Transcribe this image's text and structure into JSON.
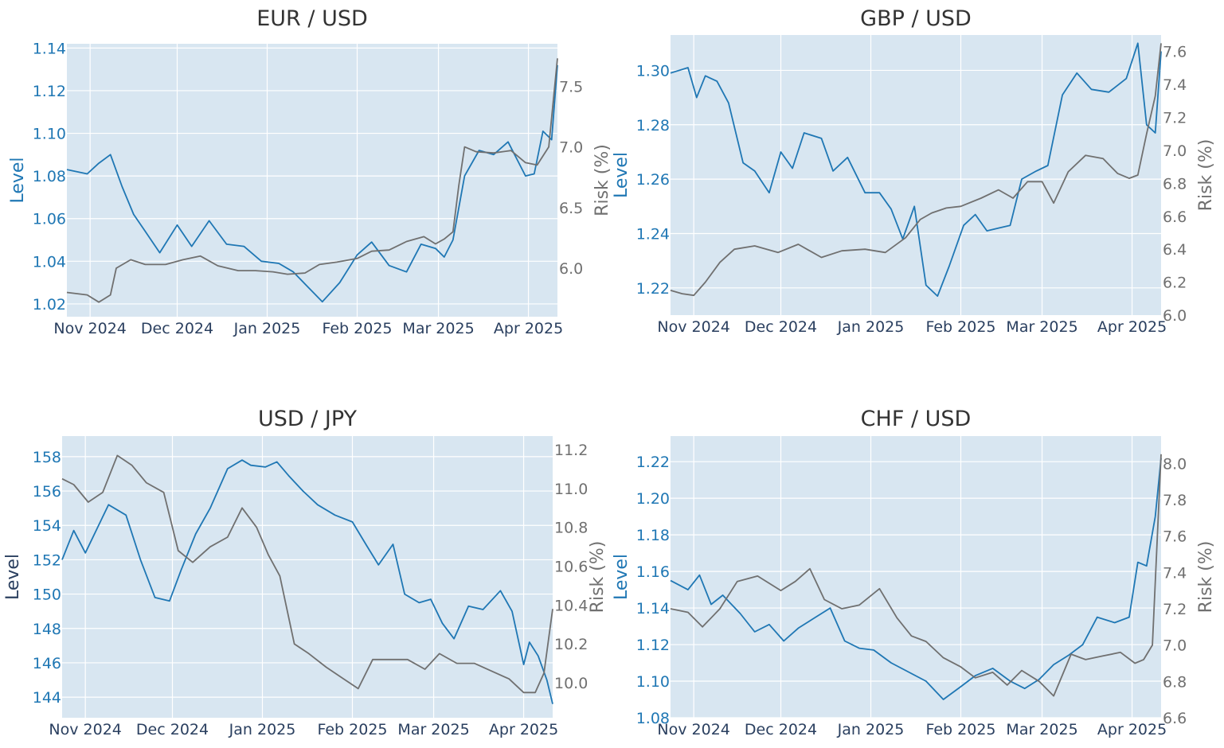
{
  "chart_data": [
    {
      "type": "line",
      "title": "EUR / USD",
      "ylabel": "Level",
      "y2label": "Risk (%)",
      "x_ticks": [
        "Nov 2024",
        "Dec 2024",
        "Jan 2025",
        "Feb 2025",
        "Mar 2025",
        "Apr 2025"
      ],
      "x_range": [
        "2024-10-24",
        "2025-04-11"
      ],
      "ylim": [
        1.014,
        1.142
      ],
      "y_ticks": [
        1.02,
        1.04,
        1.06,
        1.08,
        1.1,
        1.12,
        1.14
      ],
      "y2lim": [
        5.6,
        7.85
      ],
      "y2_ticks": [
        6.0,
        6.5,
        7.0,
        7.5
      ],
      "grid": true,
      "series": [
        {
          "role": "level",
          "axis": "left",
          "color": "#1f77b4",
          "x": [
            "2024-10-24",
            "2024-10-31",
            "2024-11-04",
            "2024-11-08",
            "2024-11-12",
            "2024-11-16",
            "2024-11-20",
            "2024-11-25",
            "2024-12-01",
            "2024-12-06",
            "2024-12-12",
            "2024-12-18",
            "2024-12-24",
            "2024-12-30",
            "2025-01-05",
            "2025-01-10",
            "2025-01-15",
            "2025-01-20",
            "2025-01-26",
            "2025-02-01",
            "2025-02-06",
            "2025-02-12",
            "2025-02-18",
            "2025-02-23",
            "2025-02-28",
            "2025-03-03",
            "2025-03-06",
            "2025-03-10",
            "2025-03-15",
            "2025-03-20",
            "2025-03-25",
            "2025-03-31",
            "2025-04-03",
            "2025-04-06",
            "2025-04-09",
            "2025-04-11"
          ],
          "y": [
            1.083,
            1.081,
            1.086,
            1.09,
            1.075,
            1.062,
            1.054,
            1.044,
            1.057,
            1.047,
            1.059,
            1.048,
            1.047,
            1.04,
            1.039,
            1.035,
            1.028,
            1.021,
            1.03,
            1.043,
            1.049,
            1.038,
            1.035,
            1.048,
            1.046,
            1.042,
            1.05,
            1.08,
            1.092,
            1.09,
            1.096,
            1.08,
            1.081,
            1.101,
            1.097,
            1.132
          ]
        },
        {
          "role": "risk",
          "axis": "right",
          "color": "#707070",
          "x": [
            "2024-10-24",
            "2024-10-31",
            "2024-11-04",
            "2024-11-08",
            "2024-11-10",
            "2024-11-15",
            "2024-11-20",
            "2024-11-27",
            "2024-12-03",
            "2024-12-09",
            "2024-12-15",
            "2024-12-22",
            "2024-12-28",
            "2025-01-03",
            "2025-01-08",
            "2025-01-14",
            "2025-01-19",
            "2025-01-25",
            "2025-02-01",
            "2025-02-06",
            "2025-02-12",
            "2025-02-18",
            "2025-02-24",
            "2025-02-28",
            "2025-03-03",
            "2025-03-06",
            "2025-03-08",
            "2025-03-10",
            "2025-03-14",
            "2025-03-20",
            "2025-03-26",
            "2025-03-31",
            "2025-04-04",
            "2025-04-08",
            "2025-04-11"
          ],
          "y": [
            5.8,
            5.78,
            5.72,
            5.78,
            6.0,
            6.07,
            6.03,
            6.03,
            6.07,
            6.1,
            6.02,
            5.98,
            5.98,
            5.97,
            5.95,
            5.96,
            6.03,
            6.05,
            6.08,
            6.14,
            6.15,
            6.22,
            6.26,
            6.2,
            6.24,
            6.3,
            6.68,
            7.0,
            6.96,
            6.95,
            6.97,
            6.87,
            6.85,
            7.0,
            7.73
          ]
        }
      ]
    },
    {
      "type": "line",
      "title": "GBP / USD",
      "ylabel": "Level",
      "y2label": "Risk (%)",
      "x_ticks": [
        "Nov 2024",
        "Dec 2024",
        "Jan 2025",
        "Feb 2025",
        "Mar 2025",
        "Apr 2025"
      ],
      "x_range": [
        "2024-10-24",
        "2025-04-11"
      ],
      "ylim": [
        1.21,
        1.313
      ],
      "y_ticks": [
        1.22,
        1.24,
        1.26,
        1.28,
        1.3
      ],
      "y2lim": [
        6.0,
        7.7
      ],
      "y2_ticks": [
        6.0,
        6.2,
        6.4,
        6.6,
        6.8,
        7.0,
        7.2,
        7.4,
        7.6
      ],
      "grid": true,
      "series": [
        {
          "role": "level",
          "axis": "left",
          "color": "#1f77b4",
          "x": [
            "2024-10-24",
            "2024-10-30",
            "2024-11-02",
            "2024-11-05",
            "2024-11-09",
            "2024-11-13",
            "2024-11-18",
            "2024-11-22",
            "2024-11-27",
            "2024-12-01",
            "2024-12-05",
            "2024-12-09",
            "2024-12-15",
            "2024-12-19",
            "2024-12-24",
            "2024-12-30",
            "2025-01-04",
            "2025-01-08",
            "2025-01-12",
            "2025-01-16",
            "2025-01-20",
            "2025-01-24",
            "2025-01-28",
            "2025-02-02",
            "2025-02-06",
            "2025-02-10",
            "2025-02-14",
            "2025-02-18",
            "2025-02-22",
            "2025-02-27",
            "2025-03-03",
            "2025-03-08",
            "2025-03-13",
            "2025-03-18",
            "2025-03-24",
            "2025-03-30",
            "2025-04-03",
            "2025-04-06",
            "2025-04-09",
            "2025-04-11"
          ],
          "y": [
            1.299,
            1.301,
            1.29,
            1.298,
            1.296,
            1.288,
            1.266,
            1.263,
            1.255,
            1.27,
            1.264,
            1.277,
            1.275,
            1.263,
            1.268,
            1.255,
            1.255,
            1.249,
            1.238,
            1.25,
            1.221,
            1.217,
            1.228,
            1.243,
            1.247,
            1.241,
            1.242,
            1.243,
            1.26,
            1.263,
            1.265,
            1.291,
            1.299,
            1.293,
            1.292,
            1.297,
            1.31,
            1.28,
            1.277,
            1.307
          ]
        },
        {
          "role": "risk",
          "axis": "right",
          "color": "#707070",
          "x": [
            "2024-10-24",
            "2024-10-28",
            "2024-11-01",
            "2024-11-05",
            "2024-11-10",
            "2024-11-15",
            "2024-11-22",
            "2024-11-30",
            "2024-12-07",
            "2024-12-15",
            "2024-12-22",
            "2024-12-30",
            "2025-01-06",
            "2025-01-13",
            "2025-01-18",
            "2025-01-22",
            "2025-01-27",
            "2025-02-01",
            "2025-02-08",
            "2025-02-14",
            "2025-02-19",
            "2025-02-24",
            "2025-03-01",
            "2025-03-05",
            "2025-03-10",
            "2025-03-16",
            "2025-03-22",
            "2025-03-27",
            "2025-03-31",
            "2025-04-03",
            "2025-04-06",
            "2025-04-09",
            "2025-04-11"
          ],
          "y": [
            6.15,
            6.13,
            6.12,
            6.2,
            6.32,
            6.4,
            6.42,
            6.38,
            6.43,
            6.35,
            6.39,
            6.4,
            6.38,
            6.47,
            6.58,
            6.62,
            6.65,
            6.66,
            6.71,
            6.76,
            6.71,
            6.81,
            6.81,
            6.68,
            6.87,
            6.97,
            6.95,
            6.86,
            6.83,
            6.85,
            7.1,
            7.33,
            7.65
          ]
        }
      ]
    },
    {
      "type": "line",
      "title": "USD / JPY",
      "ylabel": "Level",
      "y2label": "Risk (%)",
      "x_ticks": [
        "Nov 2024",
        "Dec 2024",
        "Jan 2025",
        "Feb 2025",
        "Mar 2025",
        "Apr 2025"
      ],
      "x_range": [
        "2024-10-24",
        "2025-04-11"
      ],
      "ylim": [
        142.8,
        159.2
      ],
      "y_ticks": [
        144,
        146,
        148,
        150,
        152,
        154,
        156,
        158
      ],
      "y2lim": [
        9.82,
        11.27
      ],
      "y2_ticks": [
        10.0,
        10.2,
        10.4,
        10.6,
        10.8,
        11.0,
        11.2
      ],
      "grid": true,
      "series": [
        {
          "role": "level",
          "axis": "left",
          "color": "#1f77b4",
          "x": [
            "2024-10-24",
            "2024-10-28",
            "2024-11-01",
            "2024-11-05",
            "2024-11-09",
            "2024-11-15",
            "2024-11-20",
            "2024-11-25",
            "2024-11-30",
            "2024-12-04",
            "2024-12-09",
            "2024-12-14",
            "2024-12-20",
            "2024-12-25",
            "2024-12-28",
            "2025-01-02",
            "2025-01-06",
            "2025-01-10",
            "2025-01-15",
            "2025-01-20",
            "2025-01-26",
            "2025-02-01",
            "2025-02-06",
            "2025-02-10",
            "2025-02-15",
            "2025-02-19",
            "2025-02-24",
            "2025-02-28",
            "2025-03-04",
            "2025-03-08",
            "2025-03-13",
            "2025-03-18",
            "2025-03-24",
            "2025-03-28",
            "2025-04-01",
            "2025-04-03",
            "2025-04-06",
            "2025-04-09",
            "2025-04-11"
          ],
          "y": [
            152.0,
            153.7,
            152.4,
            153.8,
            155.2,
            154.6,
            152.0,
            149.8,
            149.6,
            151.4,
            153.5,
            155.0,
            157.3,
            157.8,
            157.5,
            157.4,
            157.7,
            156.9,
            156.0,
            155.2,
            154.6,
            154.2,
            152.8,
            151.7,
            152.9,
            150.0,
            149.5,
            149.7,
            148.3,
            147.4,
            149.3,
            149.1,
            150.2,
            149.0,
            145.9,
            147.2,
            146.4,
            145.0,
            143.6
          ]
        },
        {
          "role": "risk",
          "axis": "right",
          "color": "#707070",
          "x": [
            "2024-10-24",
            "2024-10-28",
            "2024-11-02",
            "2024-11-07",
            "2024-11-12",
            "2024-11-17",
            "2024-11-22",
            "2024-11-28",
            "2024-12-03",
            "2024-12-08",
            "2024-12-14",
            "2024-12-20",
            "2024-12-25",
            "2024-12-30",
            "2025-01-03",
            "2025-01-07",
            "2025-01-12",
            "2025-01-17",
            "2025-01-23",
            "2025-01-29",
            "2025-02-03",
            "2025-02-08",
            "2025-02-14",
            "2025-02-20",
            "2025-02-26",
            "2025-03-03",
            "2025-03-09",
            "2025-03-15",
            "2025-03-21",
            "2025-03-27",
            "2025-04-01",
            "2025-04-05",
            "2025-04-08",
            "2025-04-11"
          ],
          "y": [
            11.05,
            11.02,
            10.93,
            10.98,
            11.17,
            11.12,
            11.03,
            10.98,
            10.68,
            10.62,
            10.7,
            10.75,
            10.9,
            10.8,
            10.66,
            10.55,
            10.2,
            10.15,
            10.08,
            10.02,
            9.97,
            10.12,
            10.12,
            10.12,
            10.07,
            10.15,
            10.1,
            10.1,
            10.06,
            10.02,
            9.95,
            9.95,
            10.05,
            10.38
          ]
        }
      ]
    },
    {
      "type": "line",
      "title": "CHF / USD",
      "ylabel": "Level",
      "y2label": "Risk (%)",
      "x_ticks": [
        "Nov 2024",
        "Dec 2024",
        "Jan 2025",
        "Feb 2025",
        "Mar 2025",
        "Apr 2025"
      ],
      "x_range": [
        "2024-10-24",
        "2025-04-11"
      ],
      "ylim": [
        1.08,
        1.234
      ],
      "y_ticks": [
        1.08,
        1.1,
        1.12,
        1.14,
        1.16,
        1.18,
        1.2,
        1.22
      ],
      "y2lim": [
        6.6,
        8.15
      ],
      "y2_ticks": [
        6.6,
        6.8,
        7.0,
        7.2,
        7.4,
        7.6,
        7.8,
        8.0
      ],
      "grid": true,
      "series": [
        {
          "role": "level",
          "axis": "left",
          "color": "#1f77b4",
          "x": [
            "2024-10-24",
            "2024-10-30",
            "2024-11-03",
            "2024-11-07",
            "2024-11-11",
            "2024-11-17",
            "2024-11-22",
            "2024-11-27",
            "2024-12-02",
            "2024-12-07",
            "2024-12-12",
            "2024-12-18",
            "2024-12-23",
            "2024-12-28",
            "2025-01-02",
            "2025-01-08",
            "2025-01-14",
            "2025-01-20",
            "2025-01-26",
            "2025-02-01",
            "2025-02-06",
            "2025-02-12",
            "2025-02-18",
            "2025-02-23",
            "2025-02-28",
            "2025-03-05",
            "2025-03-10",
            "2025-03-15",
            "2025-03-20",
            "2025-03-26",
            "2025-03-31",
            "2025-04-03",
            "2025-04-06",
            "2025-04-09",
            "2025-04-11"
          ],
          "y": [
            1.155,
            1.15,
            1.158,
            1.142,
            1.147,
            1.137,
            1.127,
            1.131,
            1.122,
            1.129,
            1.134,
            1.14,
            1.122,
            1.118,
            1.117,
            1.11,
            1.105,
            1.1,
            1.09,
            1.097,
            1.103,
            1.107,
            1.1,
            1.096,
            1.101,
            1.109,
            1.114,
            1.12,
            1.135,
            1.132,
            1.135,
            1.165,
            1.163,
            1.19,
            1.222
          ]
        },
        {
          "role": "risk",
          "axis": "right",
          "color": "#707070",
          "x": [
            "2024-10-24",
            "2024-10-30",
            "2024-11-04",
            "2024-11-10",
            "2024-11-16",
            "2024-11-23",
            "2024-12-01",
            "2024-12-06",
            "2024-12-11",
            "2024-12-16",
            "2024-12-22",
            "2024-12-28",
            "2025-01-04",
            "2025-01-10",
            "2025-01-15",
            "2025-01-20",
            "2025-01-26",
            "2025-02-01",
            "2025-02-06",
            "2025-02-12",
            "2025-02-17",
            "2025-02-22",
            "2025-02-28",
            "2025-03-05",
            "2025-03-11",
            "2025-03-16",
            "2025-03-22",
            "2025-03-28",
            "2025-04-02",
            "2025-04-05",
            "2025-04-08",
            "2025-04-11"
          ],
          "y": [
            7.2,
            7.18,
            7.1,
            7.2,
            7.35,
            7.38,
            7.3,
            7.35,
            7.42,
            7.25,
            7.2,
            7.22,
            7.31,
            7.15,
            7.05,
            7.02,
            6.93,
            6.88,
            6.82,
            6.85,
            6.78,
            6.86,
            6.8,
            6.72,
            6.95,
            6.92,
            6.94,
            6.96,
            6.9,
            6.92,
            7.0,
            8.05
          ]
        }
      ]
    }
  ]
}
